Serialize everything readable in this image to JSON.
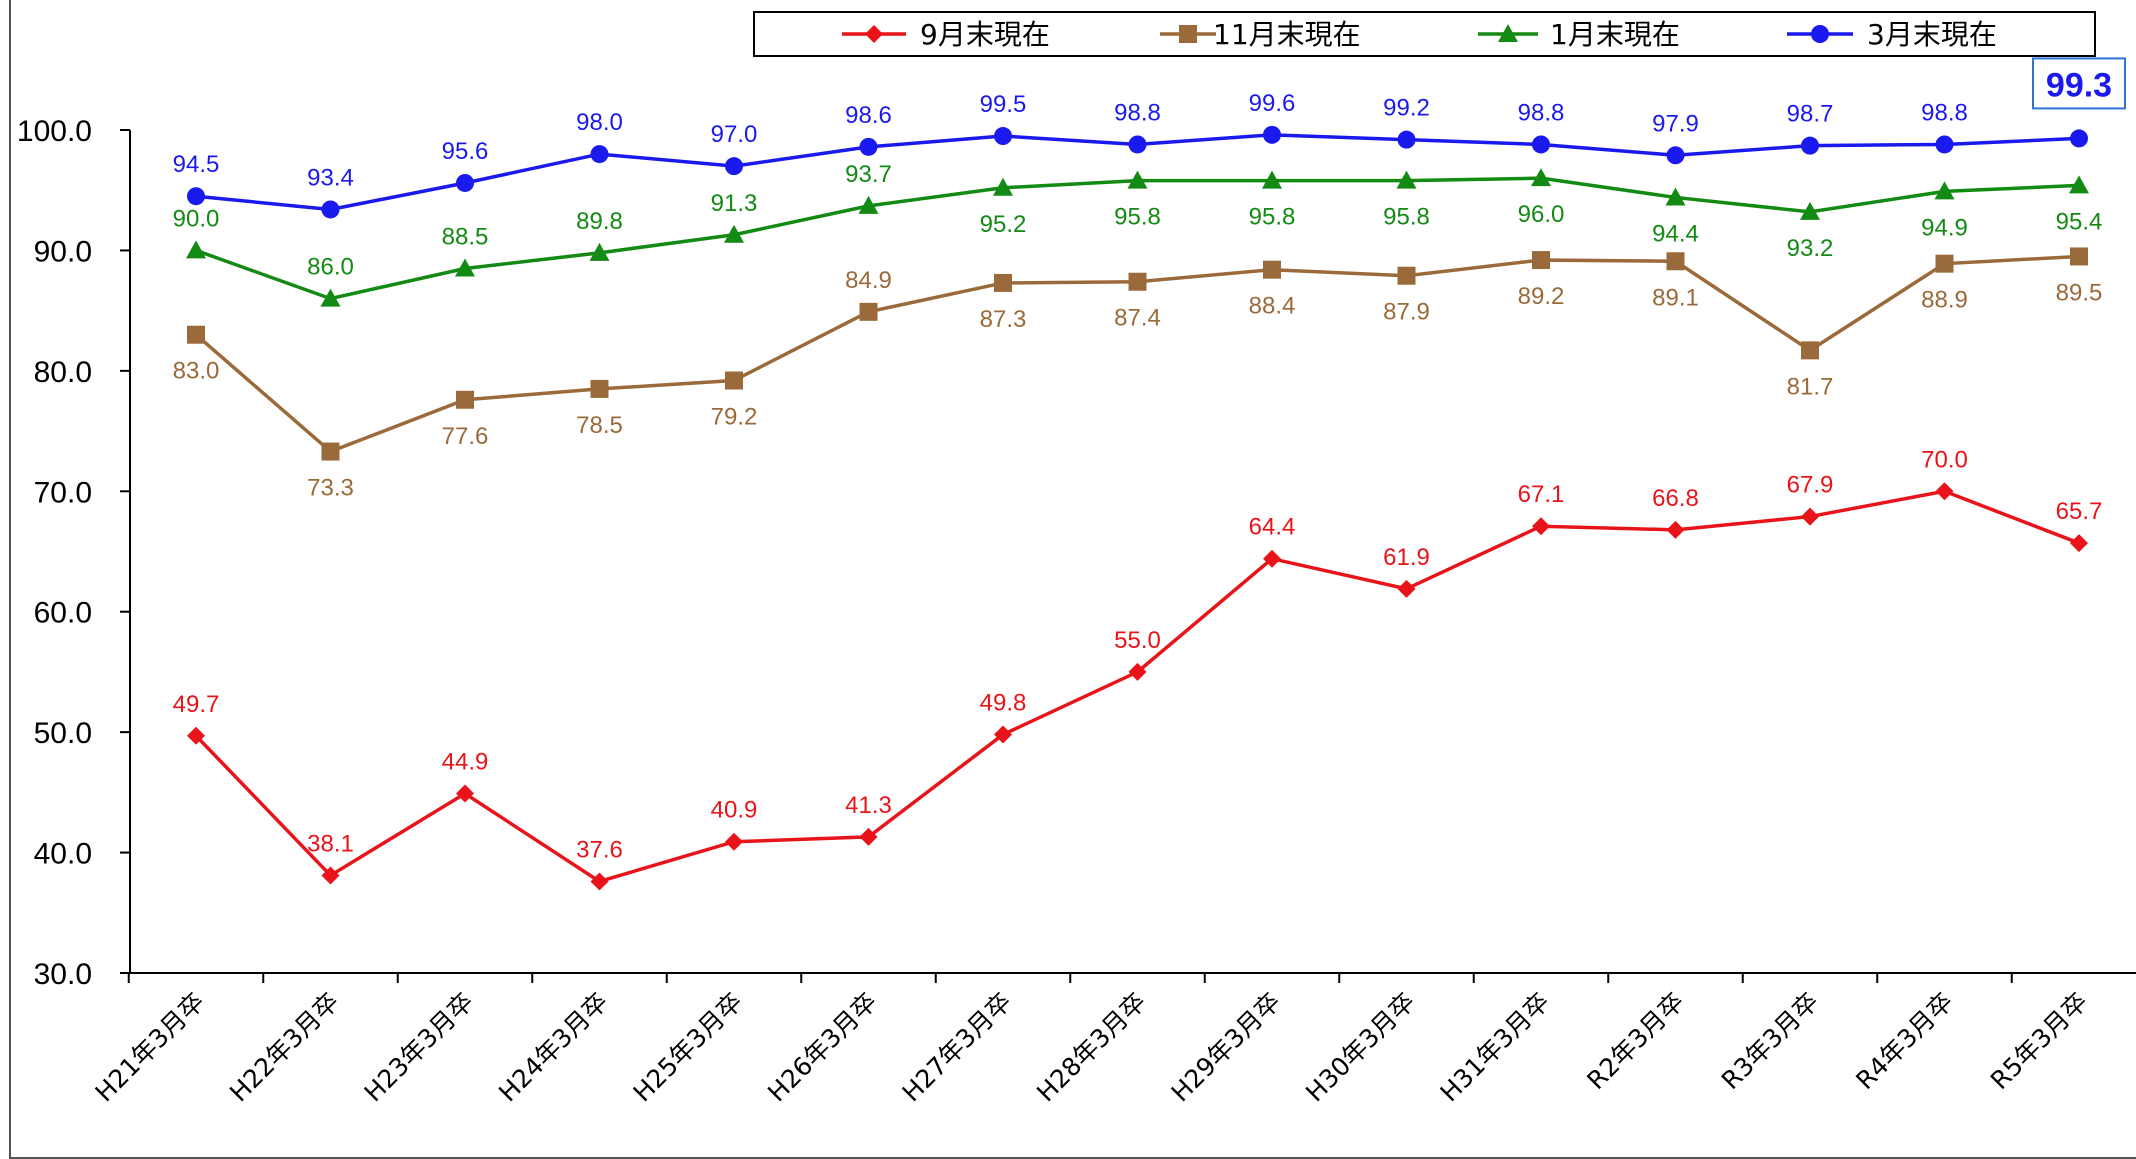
{
  "chart_data": {
    "type": "line",
    "categories": [
      "H21年3月卒",
      "H22年3月卒",
      "H23年3月卒",
      "H24年3月卒",
      "H25年3月卒",
      "H26年3月卒",
      "H27年3月卒",
      "H28年3月卒",
      "H29年3月卒",
      "H30年3月卒",
      "H31年3月卒",
      "R2年3月卒",
      "R3年3月卒",
      "R4年3月卒",
      "R5年3月卒"
    ],
    "ylim": [
      30.0,
      100.0
    ],
    "yticks": [
      "30.0",
      "40.0",
      "50.0",
      "60.0",
      "70.0",
      "80.0",
      "90.0",
      "100.0"
    ],
    "legend_position": "top-right",
    "grid": false,
    "series": [
      {
        "name": "9月末現在",
        "color": "#e8141a",
        "marker": "diamond",
        "label_position": "above",
        "values": [
          49.7,
          38.1,
          44.9,
          37.6,
          40.9,
          41.3,
          49.8,
          55.0,
          64.4,
          61.9,
          67.1,
          66.8,
          67.9,
          70.0,
          65.7
        ],
        "labels": [
          "49.7",
          "38.1",
          "44.9",
          "37.6",
          "40.9",
          "41.3",
          "49.8",
          "55.0",
          "64.4",
          "61.9",
          "67.1",
          "66.8",
          "67.9",
          "70.0",
          "65.7"
        ]
      },
      {
        "name": "11月末現在",
        "color": "#9b6a3a",
        "marker": "square",
        "label_position": "below",
        "values": [
          83.0,
          73.3,
          77.6,
          78.5,
          79.2,
          84.9,
          87.3,
          87.4,
          88.4,
          87.9,
          89.2,
          89.1,
          81.7,
          88.9,
          89.5
        ],
        "labels": [
          "83.0",
          "73.3",
          "77.6",
          "78.5",
          "79.2",
          "84.9",
          "87.3",
          "87.4",
          "88.4",
          "87.9",
          "89.2",
          "89.1",
          "81.7",
          "88.9",
          "89.5"
        ]
      },
      {
        "name": "1月末現在",
        "color": "#138a13",
        "marker": "triangle",
        "label_position": "mixed",
        "values": [
          90.0,
          86.0,
          88.5,
          89.8,
          91.3,
          93.7,
          95.2,
          95.8,
          95.8,
          95.8,
          96.0,
          94.4,
          93.2,
          94.9,
          95.4
        ],
        "labels": [
          "90.0",
          "86.0",
          "88.5",
          "89.8",
          "91.3",
          "93.7",
          "95.2",
          "95.8",
          "95.8",
          "95.8",
          "96.0",
          "94.4",
          "93.2",
          "94.9",
          "95.4"
        ]
      },
      {
        "name": "3月末現在",
        "color": "#1a1aee",
        "marker": "circle",
        "label_position": "above",
        "values": [
          94.5,
          93.4,
          95.6,
          98.0,
          97.0,
          98.6,
          99.5,
          98.8,
          99.6,
          99.2,
          98.8,
          97.9,
          98.7,
          98.8,
          99.3
        ],
        "labels": [
          "94.5",
          "93.4",
          "95.6",
          "98.0",
          "97.0",
          "98.6",
          "99.5",
          "98.8",
          "99.6",
          "99.2",
          "98.8",
          "97.9",
          "98.7",
          "98.8",
          "99.3"
        ]
      }
    ],
    "highlight": {
      "series_index": 3,
      "point_index": 14,
      "label": "99.3"
    }
  }
}
